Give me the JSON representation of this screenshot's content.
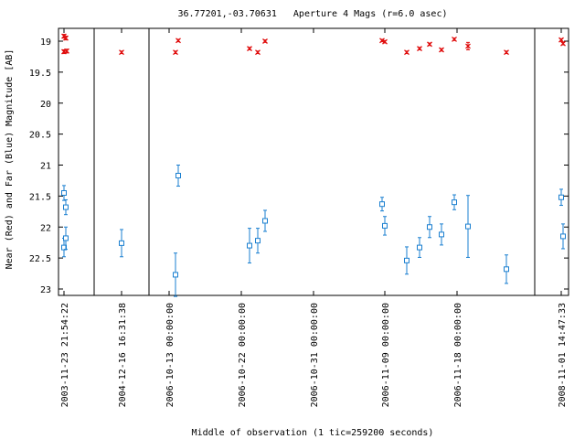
{
  "chart_data": {
    "type": "scatter",
    "title": "36.77201,-03.70631   Aperture 4 Mags (r=6.0 asec)",
    "xlabel": "Middle of observation (1 tic=259200 seconds)",
    "ylabel": "Near (Red) and Far (Blue) Magnitude [AB]",
    "ylim": [
      23.1,
      18.9
    ],
    "y_inverted": true,
    "yticks": [
      "19",
      "19.5",
      "20",
      "20.5",
      "21",
      "21.5",
      "22",
      "22.5",
      "23"
    ],
    "ytick_values": [
      19,
      19.5,
      20,
      20.5,
      21,
      21.5,
      22,
      22.5,
      23
    ],
    "xticks": [
      "2003-11-23 21:54:22",
      "2004-12-16 16:31:38",
      "2006-10-13 00:00:00",
      "2006-10-22 00:00:00",
      "2006-10-31 00:00:00",
      "2006-11-09 00:00:00",
      "2006-11-18 00:00:00",
      "2008-11-01 14:47:33"
    ],
    "segment_breaks_after_xtick": [
      0,
      1,
      6
    ],
    "xtick_positions": [
      70,
      133,
      185,
      264,
      343,
      421,
      500,
      614
    ],
    "series": [
      {
        "name": "Near (Red)",
        "color": "#e01010",
        "marker": "x",
        "points": [
          {
            "x": 70,
            "y": 18.92,
            "err": 0.03
          },
          {
            "x": 72,
            "y": 18.95,
            "err": 0.03
          },
          {
            "x": 70,
            "y": 19.17,
            "err": 0.03
          },
          {
            "x": 73,
            "y": 19.16,
            "err": 0.03
          },
          {
            "x": 133,
            "y": 19.18,
            "err": 0.02
          },
          {
            "x": 192,
            "y": 19.18,
            "err": 0.02
          },
          {
            "x": 195,
            "y": 18.99,
            "err": 0.02
          },
          {
            "x": 273,
            "y": 19.12,
            "err": 0.02
          },
          {
            "x": 282,
            "y": 19.18,
            "err": 0.02
          },
          {
            "x": 290,
            "y": 19.0,
            "err": 0.02
          },
          {
            "x": 418,
            "y": 18.99,
            "err": 0.02
          },
          {
            "x": 421,
            "y": 19.01,
            "err": 0.02
          },
          {
            "x": 445,
            "y": 19.18,
            "err": 0.02
          },
          {
            "x": 459,
            "y": 19.12,
            "err": 0.02
          },
          {
            "x": 470,
            "y": 19.05,
            "err": 0.02
          },
          {
            "x": 483,
            "y": 19.14,
            "err": 0.02
          },
          {
            "x": 497,
            "y": 18.97,
            "err": 0.02
          },
          {
            "x": 512,
            "y": 19.08,
            "err": 0.06
          },
          {
            "x": 554,
            "y": 19.18,
            "err": 0.02
          },
          {
            "x": 614,
            "y": 18.98,
            "err": 0.02
          },
          {
            "x": 616,
            "y": 19.04,
            "err": 0.02
          }
        ]
      },
      {
        "name": "Far (Blue)",
        "color": "#1a7fd0",
        "marker": "square",
        "points": [
          {
            "x": 70,
            "y": 21.45,
            "err": 0.12
          },
          {
            "x": 72,
            "y": 21.68,
            "err": 0.12
          },
          {
            "x": 70,
            "y": 22.33,
            "err": 0.15
          },
          {
            "x": 72,
            "y": 22.18,
            "err": 0.18
          },
          {
            "x": 133,
            "y": 22.26,
            "err": 0.22
          },
          {
            "x": 192,
            "y": 22.77,
            "err": 0.35
          },
          {
            "x": 195,
            "y": 21.17,
            "err": 0.17
          },
          {
            "x": 273,
            "y": 22.3,
            "err": 0.28
          },
          {
            "x": 282,
            "y": 22.22,
            "err": 0.2
          },
          {
            "x": 290,
            "y": 21.9,
            "err": 0.17
          },
          {
            "x": 418,
            "y": 21.63,
            "err": 0.11
          },
          {
            "x": 421,
            "y": 21.98,
            "err": 0.15
          },
          {
            "x": 445,
            "y": 22.54,
            "err": 0.22
          },
          {
            "x": 459,
            "y": 22.33,
            "err": 0.16
          },
          {
            "x": 470,
            "y": 22.0,
            "err": 0.17
          },
          {
            "x": 483,
            "y": 22.12,
            "err": 0.17
          },
          {
            "x": 497,
            "y": 21.6,
            "err": 0.12
          },
          {
            "x": 512,
            "y": 21.99,
            "err": 0.5
          },
          {
            "x": 554,
            "y": 22.68,
            "err": 0.23
          },
          {
            "x": 614,
            "y": 21.52,
            "err": 0.13
          },
          {
            "x": 616,
            "y": 22.15,
            "err": 0.2
          }
        ]
      }
    ]
  }
}
